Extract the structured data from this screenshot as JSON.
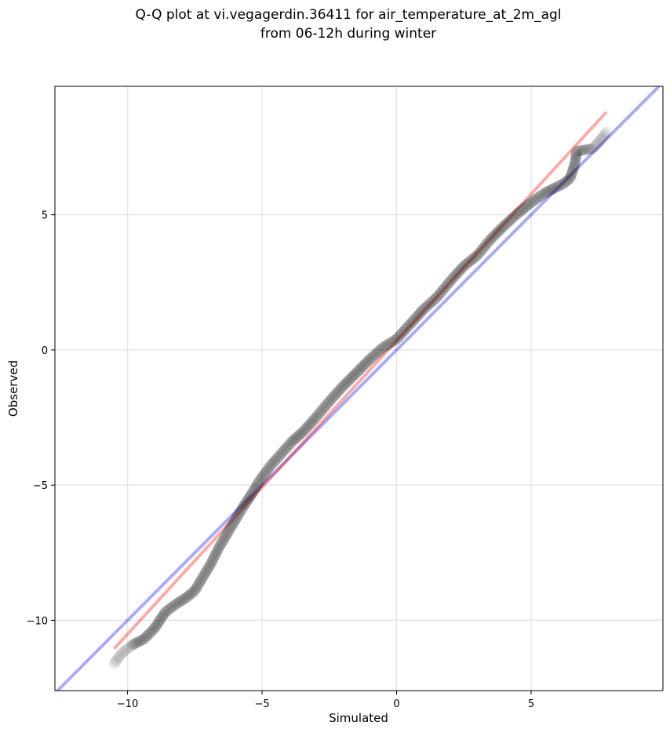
{
  "chart_data": {
    "type": "scatter",
    "title": "Q-Q plot at vi.vegagerdin.36411 for air_temperature_at_2m_agl",
    "subtitle": "from 06-12h during winter",
    "xlabel": "Simulated",
    "ylabel": "Observed",
    "xlim": [
      -12.7,
      9.9
    ],
    "ylim": [
      -12.6,
      9.75
    ],
    "x_ticks": [
      -10,
      -5,
      0,
      5
    ],
    "y_ticks": [
      -10,
      -5,
      0,
      5
    ],
    "x_tick_labels": [
      "−10",
      "−5",
      "0",
      "5"
    ],
    "y_tick_labels": [
      "−10",
      "−5",
      "0",
      "5"
    ],
    "grid": true,
    "colors": {
      "points": "#000000",
      "identity_line": "#0000dd",
      "fit_line": "#ee0000",
      "grid": "#e6e6e6"
    },
    "reference_lines": [
      {
        "kind": "identity",
        "x": [
          -12.7,
          9.9
        ],
        "y": [
          -12.7,
          9.9
        ]
      },
      {
        "kind": "fit",
        "x": [
          -10.5,
          7.8
        ],
        "y": [
          -11.05,
          8.8
        ]
      }
    ],
    "quantile_curve": {
      "x": [
        -10.5,
        -10.2,
        -9.8,
        -9.4,
        -9.0,
        -8.6,
        -8.2,
        -7.8,
        -7.5,
        -7.2,
        -6.9,
        -6.6,
        -6.3,
        -6.0,
        -5.7,
        -5.4,
        -5.1,
        -4.7,
        -4.3,
        -3.9,
        -3.5,
        -3.0,
        -2.5,
        -2.0,
        -1.5,
        -1.0,
        -0.5,
        0.0,
        0.5,
        1.0,
        1.5,
        2.0,
        2.5,
        3.0,
        3.5,
        4.0,
        4.5,
        5.0,
        5.5,
        5.9,
        6.2,
        6.45,
        6.6,
        6.65,
        6.7,
        7.3,
        7.6,
        7.8
      ],
      "y": [
        -11.6,
        -11.2,
        -10.9,
        -10.7,
        -10.3,
        -9.7,
        -9.4,
        -9.15,
        -8.9,
        -8.4,
        -7.9,
        -7.3,
        -6.8,
        -6.3,
        -5.8,
        -5.35,
        -4.85,
        -4.3,
        -3.85,
        -3.4,
        -3.05,
        -2.5,
        -1.9,
        -1.35,
        -0.85,
        -0.35,
        0.1,
        0.4,
        0.95,
        1.5,
        1.95,
        2.55,
        3.1,
        3.5,
        4.1,
        4.6,
        5.05,
        5.45,
        5.8,
        6.0,
        6.15,
        6.35,
        6.8,
        7.05,
        7.35,
        7.45,
        7.8,
        8.05
      ]
    }
  }
}
